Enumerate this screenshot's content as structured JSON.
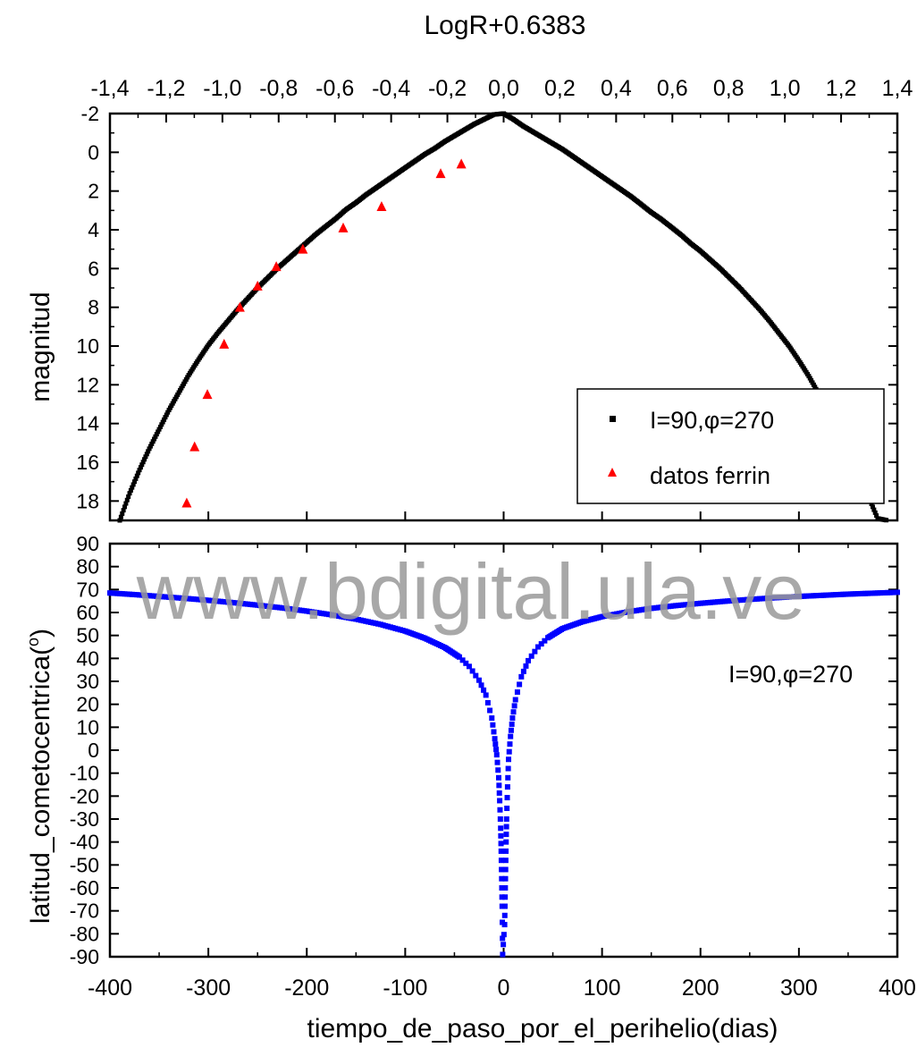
{
  "watermark": "www.bdigital.ula.ve",
  "chart_data": [
    {
      "type": "scatter",
      "panel": "top",
      "top_axis_label": "LogR+0.6383",
      "top_axis_ticks": [
        "-1,4",
        "-1,2",
        "-1,0",
        "-0,8",
        "-0,6",
        "-0,4",
        "-0,2",
        "0,0",
        "0,2",
        "0,4",
        "0,6",
        "0,8",
        "1,0",
        "1,2",
        "1,4"
      ],
      "ylabel": "magnitud",
      "ylim": [
        -2,
        19
      ],
      "y_inverted": true,
      "yticks": [
        "-2",
        "0",
        "2",
        "4",
        "6",
        "8",
        "10",
        "12",
        "14",
        "16",
        "18"
      ],
      "xlim": [
        -400,
        400
      ],
      "legend_position": "bottom-right",
      "series": [
        {
          "name": "I=90,φ=270",
          "marker": "square",
          "color": "#000000",
          "x": [
            -390,
            -380,
            -370,
            -360,
            -350,
            -340,
            -330,
            -320,
            -310,
            -300,
            -290,
            -280,
            -270,
            -260,
            -250,
            -240,
            -230,
            -220,
            -210,
            -200,
            -190,
            -180,
            -170,
            -160,
            -150,
            -140,
            -130,
            -120,
            -110,
            -100,
            -90,
            -80,
            -70,
            -60,
            -50,
            -40,
            -30,
            -20,
            -10,
            0,
            10,
            20,
            30,
            40,
            50,
            60,
            70,
            80,
            90,
            100,
            110,
            120,
            130,
            140,
            150,
            160,
            170,
            180,
            190,
            200,
            210,
            220,
            230,
            240,
            250,
            260,
            270,
            280,
            290,
            300,
            310,
            320,
            330,
            340,
            350,
            360,
            370,
            380,
            390
          ],
          "y": [
            19,
            17.6,
            16.4,
            15.3,
            14.3,
            13.3,
            12.4,
            11.5,
            10.7,
            9.95,
            9.3,
            8.7,
            8.1,
            7.55,
            7.0,
            6.5,
            6.0,
            5.55,
            5.1,
            4.65,
            4.2,
            3.8,
            3.4,
            2.95,
            2.6,
            2.2,
            1.85,
            1.5,
            1.15,
            0.8,
            0.45,
            0.1,
            -0.2,
            -0.55,
            -0.85,
            -1.15,
            -1.45,
            -1.7,
            -1.95,
            -2.0,
            -1.7,
            -1.35,
            -1.05,
            -0.75,
            -0.45,
            -0.15,
            0.2,
            0.55,
            0.9,
            1.25,
            1.6,
            1.95,
            2.3,
            2.7,
            3.1,
            3.45,
            3.85,
            4.25,
            4.7,
            5.1,
            5.55,
            6.0,
            6.5,
            7.0,
            7.55,
            8.1,
            8.7,
            9.35,
            10.0,
            10.75,
            11.55,
            12.45,
            13.4,
            14.4,
            15.45,
            16.55,
            17.7,
            18.9,
            19
          ]
        },
        {
          "name": "datos ferrin",
          "marker": "triangle",
          "color": "#ff0000",
          "x": [
            -322,
            -314,
            -301,
            -284,
            -268,
            -250,
            -231,
            -204,
            -163,
            -124,
            -64,
            -43
          ],
          "y": [
            18.1,
            15.2,
            12.5,
            9.9,
            8.0,
            6.9,
            5.9,
            5.0,
            3.9,
            2.8,
            1.1,
            0.6
          ]
        }
      ]
    },
    {
      "type": "scatter",
      "panel": "bottom",
      "xlabel": "tiempo_de_paso_por_el_perihelio(dias)",
      "ylabel": "latitud_cometocentrica(o)",
      "ylabel_main": "latitud_cometocentrica(",
      "ylabel_sup": "o",
      "ylabel_close": ")",
      "xlim": [
        -400,
        400
      ],
      "xticks": [
        "-400",
        "-300",
        "-200",
        "-100",
        "0",
        "100",
        "200",
        "300",
        "400"
      ],
      "ylim": [
        -90,
        90
      ],
      "yticks": [
        "90",
        "80",
        "70",
        "60",
        "50",
        "40",
        "30",
        "20",
        "10",
        "0",
        "-10",
        "-20",
        "-30",
        "-40",
        "-50",
        "-60",
        "-70",
        "-80",
        "-90"
      ],
      "annotation": "I=90,φ=270",
      "series": [
        {
          "name": "I=90,φ=270",
          "marker": "square",
          "color": "#0000ff",
          "x": [
            -400,
            -375,
            -350,
            -325,
            -300,
            -275,
            -250,
            -225,
            -200,
            -175,
            -150,
            -125,
            -100,
            -80,
            -60,
            -45,
            -35,
            -25,
            -18,
            -12,
            -9,
            -7,
            -5,
            -4,
            -3,
            -2.5,
            -2,
            -1.5,
            -1,
            1,
            1.5,
            2,
            2.5,
            3,
            4,
            5,
            7,
            9,
            12,
            18,
            25,
            35,
            45,
            60,
            80,
            100,
            125,
            150,
            175,
            200,
            225,
            250,
            275,
            300,
            325,
            350,
            375,
            400
          ],
          "y": [
            68.5,
            67.8,
            67.0,
            66.2,
            65.3,
            64.3,
            63.2,
            62.0,
            60.6,
            59.0,
            57.1,
            54.8,
            51.9,
            48.8,
            44.8,
            40.6,
            36.5,
            30.5,
            24.0,
            14.0,
            5.0,
            -2.0,
            -12.0,
            -22.0,
            -34.0,
            -44.0,
            -56.0,
            -68.0,
            -89.0,
            -76.0,
            -64.0,
            -52.0,
            -40.0,
            -30.0,
            -16.0,
            -4.0,
            6.0,
            14.0,
            22.0,
            32.0,
            39.0,
            45.0,
            49.0,
            53.0,
            56.0,
            58.2,
            60.2,
            61.8,
            63.0,
            64.0,
            64.9,
            65.7,
            66.4,
            67.0,
            67.5,
            68.0,
            68.4,
            68.8
          ]
        }
      ]
    }
  ]
}
